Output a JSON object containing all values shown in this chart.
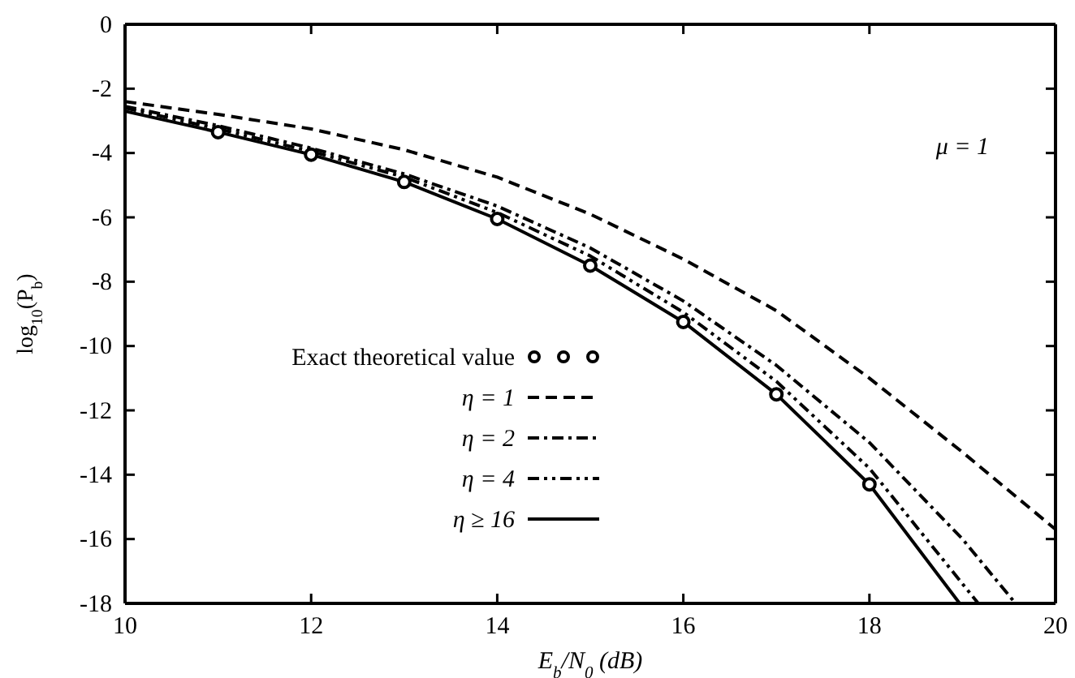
{
  "chart_data": {
    "type": "line",
    "xlabel": "E$_{b}$/N$_{0}$ (dB)",
    "ylabel": "log$_{10}$(P$_{b}$)",
    "xlim": [
      10,
      20
    ],
    "xticks": [
      10,
      12,
      14,
      16,
      18,
      20
    ],
    "ylim": [
      -18,
      0
    ],
    "yticks": [
      -18,
      -16,
      -14,
      -12,
      -10,
      -8,
      -6,
      -4,
      -2,
      0
    ],
    "legend": "bottom left",
    "grid": false,
    "annotations": [
      "μ = 1"
    ],
    "series": [
      {
        "name": "Exact theoretical value",
        "type": "scatter",
        "marker": "circle",
        "color": "#000000",
        "x": [
          11,
          12,
          13,
          14,
          15,
          16,
          17,
          18
        ],
        "values": [
          -3.35,
          -4.05,
          -4.9,
          -6.05,
          -7.5,
          -9.25,
          -11.5,
          -14.3
        ]
      },
      {
        "name": "η = 1",
        "color": "#000000",
        "line_style": "dashed",
        "x": [
          10,
          11,
          12,
          13,
          14,
          15,
          16,
          17,
          18,
          19,
          20
        ],
        "values": [
          -2.4,
          -2.8,
          -3.25,
          -3.9,
          -4.75,
          -5.9,
          -7.3,
          -8.9,
          -11.0,
          -13.3,
          -15.7
        ]
      },
      {
        "name": "η = 2",
        "color": "#000000",
        "line_style": "dashdot",
        "x": [
          10,
          11,
          12,
          13,
          14,
          15,
          16,
          17,
          18,
          19,
          19.57
        ],
        "values": [
          -2.55,
          -3.15,
          -3.85,
          -4.65,
          -5.65,
          -6.95,
          -8.6,
          -10.6,
          -13.0,
          -16.0,
          -18
        ]
      },
      {
        "name": "η = 4",
        "color": "#000000",
        "line_style": "dashdotdot",
        "x": [
          10,
          11,
          12,
          13,
          14,
          15,
          16,
          17,
          18,
          19.17
        ],
        "values": [
          -2.6,
          -3.25,
          -3.95,
          -4.75,
          -5.85,
          -7.2,
          -8.95,
          -11.1,
          -13.8,
          -18
        ]
      },
      {
        "name": "η ≥ 16",
        "color": "#000000",
        "line_style": "solid",
        "x": [
          10,
          11,
          12,
          13,
          14,
          15,
          16,
          17,
          18,
          18.97
        ],
        "values": [
          -2.7,
          -3.35,
          -4.05,
          -4.9,
          -6.05,
          -7.5,
          -9.25,
          -11.5,
          -14.3,
          -18
        ]
      }
    ]
  }
}
